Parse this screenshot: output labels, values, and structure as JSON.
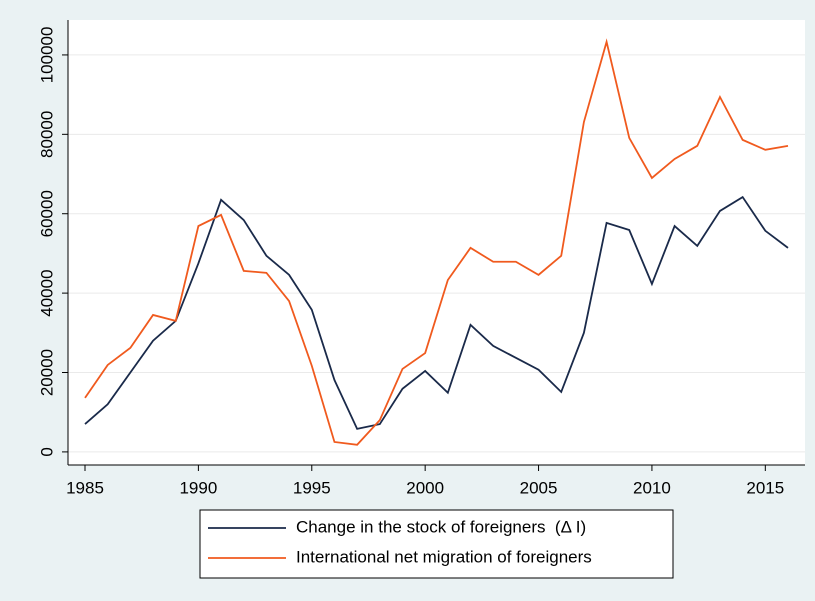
{
  "chart_data": {
    "type": "line",
    "x": [
      1985,
      1986,
      1987,
      1988,
      1989,
      1990,
      1991,
      1992,
      1993,
      1994,
      1995,
      1996,
      1997,
      1998,
      1999,
      2000,
      2001,
      2002,
      2003,
      2004,
      2005,
      2006,
      2007,
      2008,
      2009,
      2010,
      2011,
      2012,
      2013,
      2014,
      2015,
      2016
    ],
    "series": [
      {
        "name": "Change in the stock of foreigners  (Δ I)",
        "color": "#1a2a4a",
        "values": [
          7000,
          12000,
          20000,
          28000,
          33000,
          47500,
          63500,
          58400,
          49400,
          44600,
          35800,
          18100,
          5800,
          7000,
          15900,
          20400,
          14900,
          32000,
          26700,
          23700,
          20700,
          15100,
          30000,
          57700,
          55900,
          42300,
          56900,
          51900,
          60700,
          64200,
          55700,
          51400
        ]
      },
      {
        "name": "International net migration of foreigners",
        "color": "#f05a1e",
        "values": [
          13600,
          21900,
          26200,
          34500,
          33000,
          56900,
          59700,
          45600,
          45100,
          38000,
          21700,
          2500,
          1800,
          8000,
          20900,
          24900,
          43300,
          51400,
          47900,
          47900,
          44600,
          49400,
          83100,
          103300,
          79100,
          69000,
          73800,
          77100,
          89400,
          78600,
          76100,
          77100
        ]
      }
    ],
    "xlim": [
      1984.25,
      2016.75
    ],
    "xticks": [
      1985,
      1990,
      1995,
      2000,
      2005,
      2010,
      2015
    ],
    "ylim": [
      -3300,
      108800
    ],
    "yticks": [
      0,
      20000,
      40000,
      60000,
      80000,
      100000
    ],
    "grid": true,
    "legend": "bottom"
  }
}
